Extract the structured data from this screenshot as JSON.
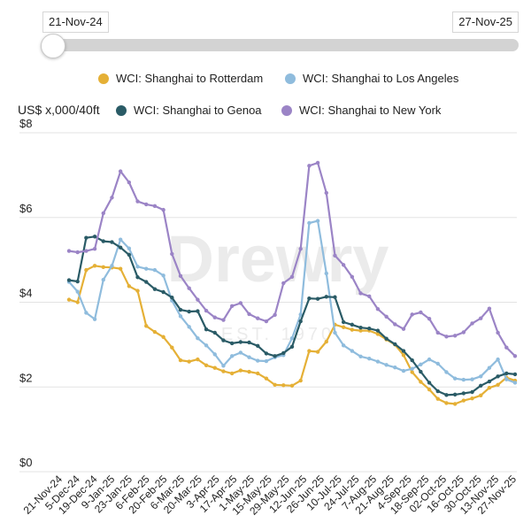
{
  "range_slider": {
    "start_label": "21-Nov-24",
    "end_label": "27-Nov-25"
  },
  "unit_label": "US$ x,000/40ft",
  "watermark": {
    "brand": "Drewry",
    "established": "EST. 1970"
  },
  "colors": {
    "rotterdam": "#e5b036",
    "losangeles": "#8fbcdd",
    "genoa": "#2a5b66",
    "newyork": "#9b84c6",
    "grid": "#e3e3e3"
  },
  "chart_data": {
    "type": "line",
    "xlabel": "",
    "ylabel": "US$ x,000/40ft",
    "ylim": [
      0,
      8
    ],
    "yticks": [
      0,
      2,
      4,
      6,
      8
    ],
    "ytick_labels": [
      "$0",
      "$2",
      "$4",
      "$6",
      "$8"
    ],
    "xtick_labels": [
      "21-Nov-24",
      "5-Dec-24",
      "19-Dec-24",
      "9-Jan-25",
      "23-Jan-25",
      "6-Feb-25",
      "20-Feb-25",
      "6-Mar-25",
      "20-Mar-25",
      "3-Apr-25",
      "17-Apr-25",
      "1-May-25",
      "15-May-25",
      "29-May-25",
      "12-Jun-25",
      "26-Jun-25",
      "10-Jul-25",
      "24-Jul-25",
      "7-Aug-25",
      "21-Aug-25",
      "4-Sep-25",
      "18-Sep-25",
      "02-Oct-25",
      "16-Oct-25",
      "30-Oct-25",
      "13-Nov-25",
      "27-Nov-25"
    ],
    "grid": true,
    "legend_position": "top",
    "series": [
      {
        "name": "WCI: Shanghai to Rotterdam",
        "color": "#e5b036",
        "values": [
          4.06,
          4.0,
          4.76,
          4.86,
          4.83,
          4.82,
          4.79,
          4.38,
          4.27,
          3.44,
          3.3,
          3.18,
          2.93,
          2.63,
          2.6,
          2.65,
          2.51,
          2.45,
          2.37,
          2.32,
          2.39,
          2.36,
          2.32,
          2.2,
          2.05,
          2.04,
          2.03,
          2.15,
          2.85,
          2.83,
          3.07,
          3.47,
          3.41,
          3.35,
          3.33,
          3.33,
          3.25,
          3.12,
          3.0,
          2.75,
          2.35,
          2.12,
          1.94,
          1.72,
          1.62,
          1.6,
          1.68,
          1.73,
          1.8,
          1.98,
          2.05,
          2.22,
          2.15
        ]
      },
      {
        "name": "WCI: Shanghai to Los Angeles",
        "color": "#8fbcdd",
        "values": [
          4.48,
          4.25,
          3.75,
          3.6,
          4.53,
          4.86,
          5.48,
          5.27,
          4.84,
          4.79,
          4.76,
          4.63,
          4.04,
          3.67,
          3.42,
          3.15,
          2.98,
          2.77,
          2.5,
          2.73,
          2.81,
          2.7,
          2.62,
          2.61,
          2.7,
          2.75,
          3.15,
          3.71,
          5.87,
          5.92,
          4.68,
          3.28,
          2.98,
          2.85,
          2.72,
          2.67,
          2.6,
          2.52,
          2.46,
          2.38,
          2.43,
          2.53,
          2.65,
          2.55,
          2.35,
          2.2,
          2.17,
          2.18,
          2.25,
          2.45,
          2.65,
          2.18,
          2.1
        ]
      },
      {
        "name": "WCI: Shanghai to Genoa",
        "color": "#2a5b66",
        "values": [
          4.52,
          4.49,
          5.52,
          5.55,
          5.44,
          5.42,
          5.29,
          5.12,
          4.59,
          4.48,
          4.31,
          4.24,
          4.11,
          3.82,
          3.78,
          3.79,
          3.36,
          3.28,
          3.1,
          3.03,
          3.06,
          3.05,
          2.97,
          2.79,
          2.73,
          2.8,
          2.95,
          3.55,
          4.09,
          4.08,
          4.13,
          4.12,
          3.53,
          3.47,
          3.4,
          3.38,
          3.33,
          3.14,
          3.01,
          2.85,
          2.63,
          2.36,
          2.1,
          1.9,
          1.81,
          1.82,
          1.85,
          1.88,
          2.03,
          2.13,
          2.25,
          2.32,
          2.3
        ]
      },
      {
        "name": "WCI: Shanghai to New York",
        "color": "#9b84c6",
        "values": [
          5.21,
          5.18,
          5.21,
          5.26,
          6.1,
          6.47,
          7.09,
          6.83,
          6.38,
          6.31,
          6.27,
          6.18,
          5.14,
          4.62,
          4.33,
          4.06,
          3.8,
          3.64,
          3.58,
          3.91,
          3.98,
          3.72,
          3.62,
          3.55,
          3.7,
          4.45,
          4.6,
          5.26,
          7.22,
          7.29,
          6.58,
          5.1,
          4.88,
          4.6,
          4.21,
          4.14,
          3.84,
          3.66,
          3.48,
          3.37,
          3.71,
          3.76,
          3.61,
          3.28,
          3.19,
          3.21,
          3.29,
          3.5,
          3.62,
          3.85,
          3.28,
          2.93,
          2.73
        ]
      }
    ]
  }
}
